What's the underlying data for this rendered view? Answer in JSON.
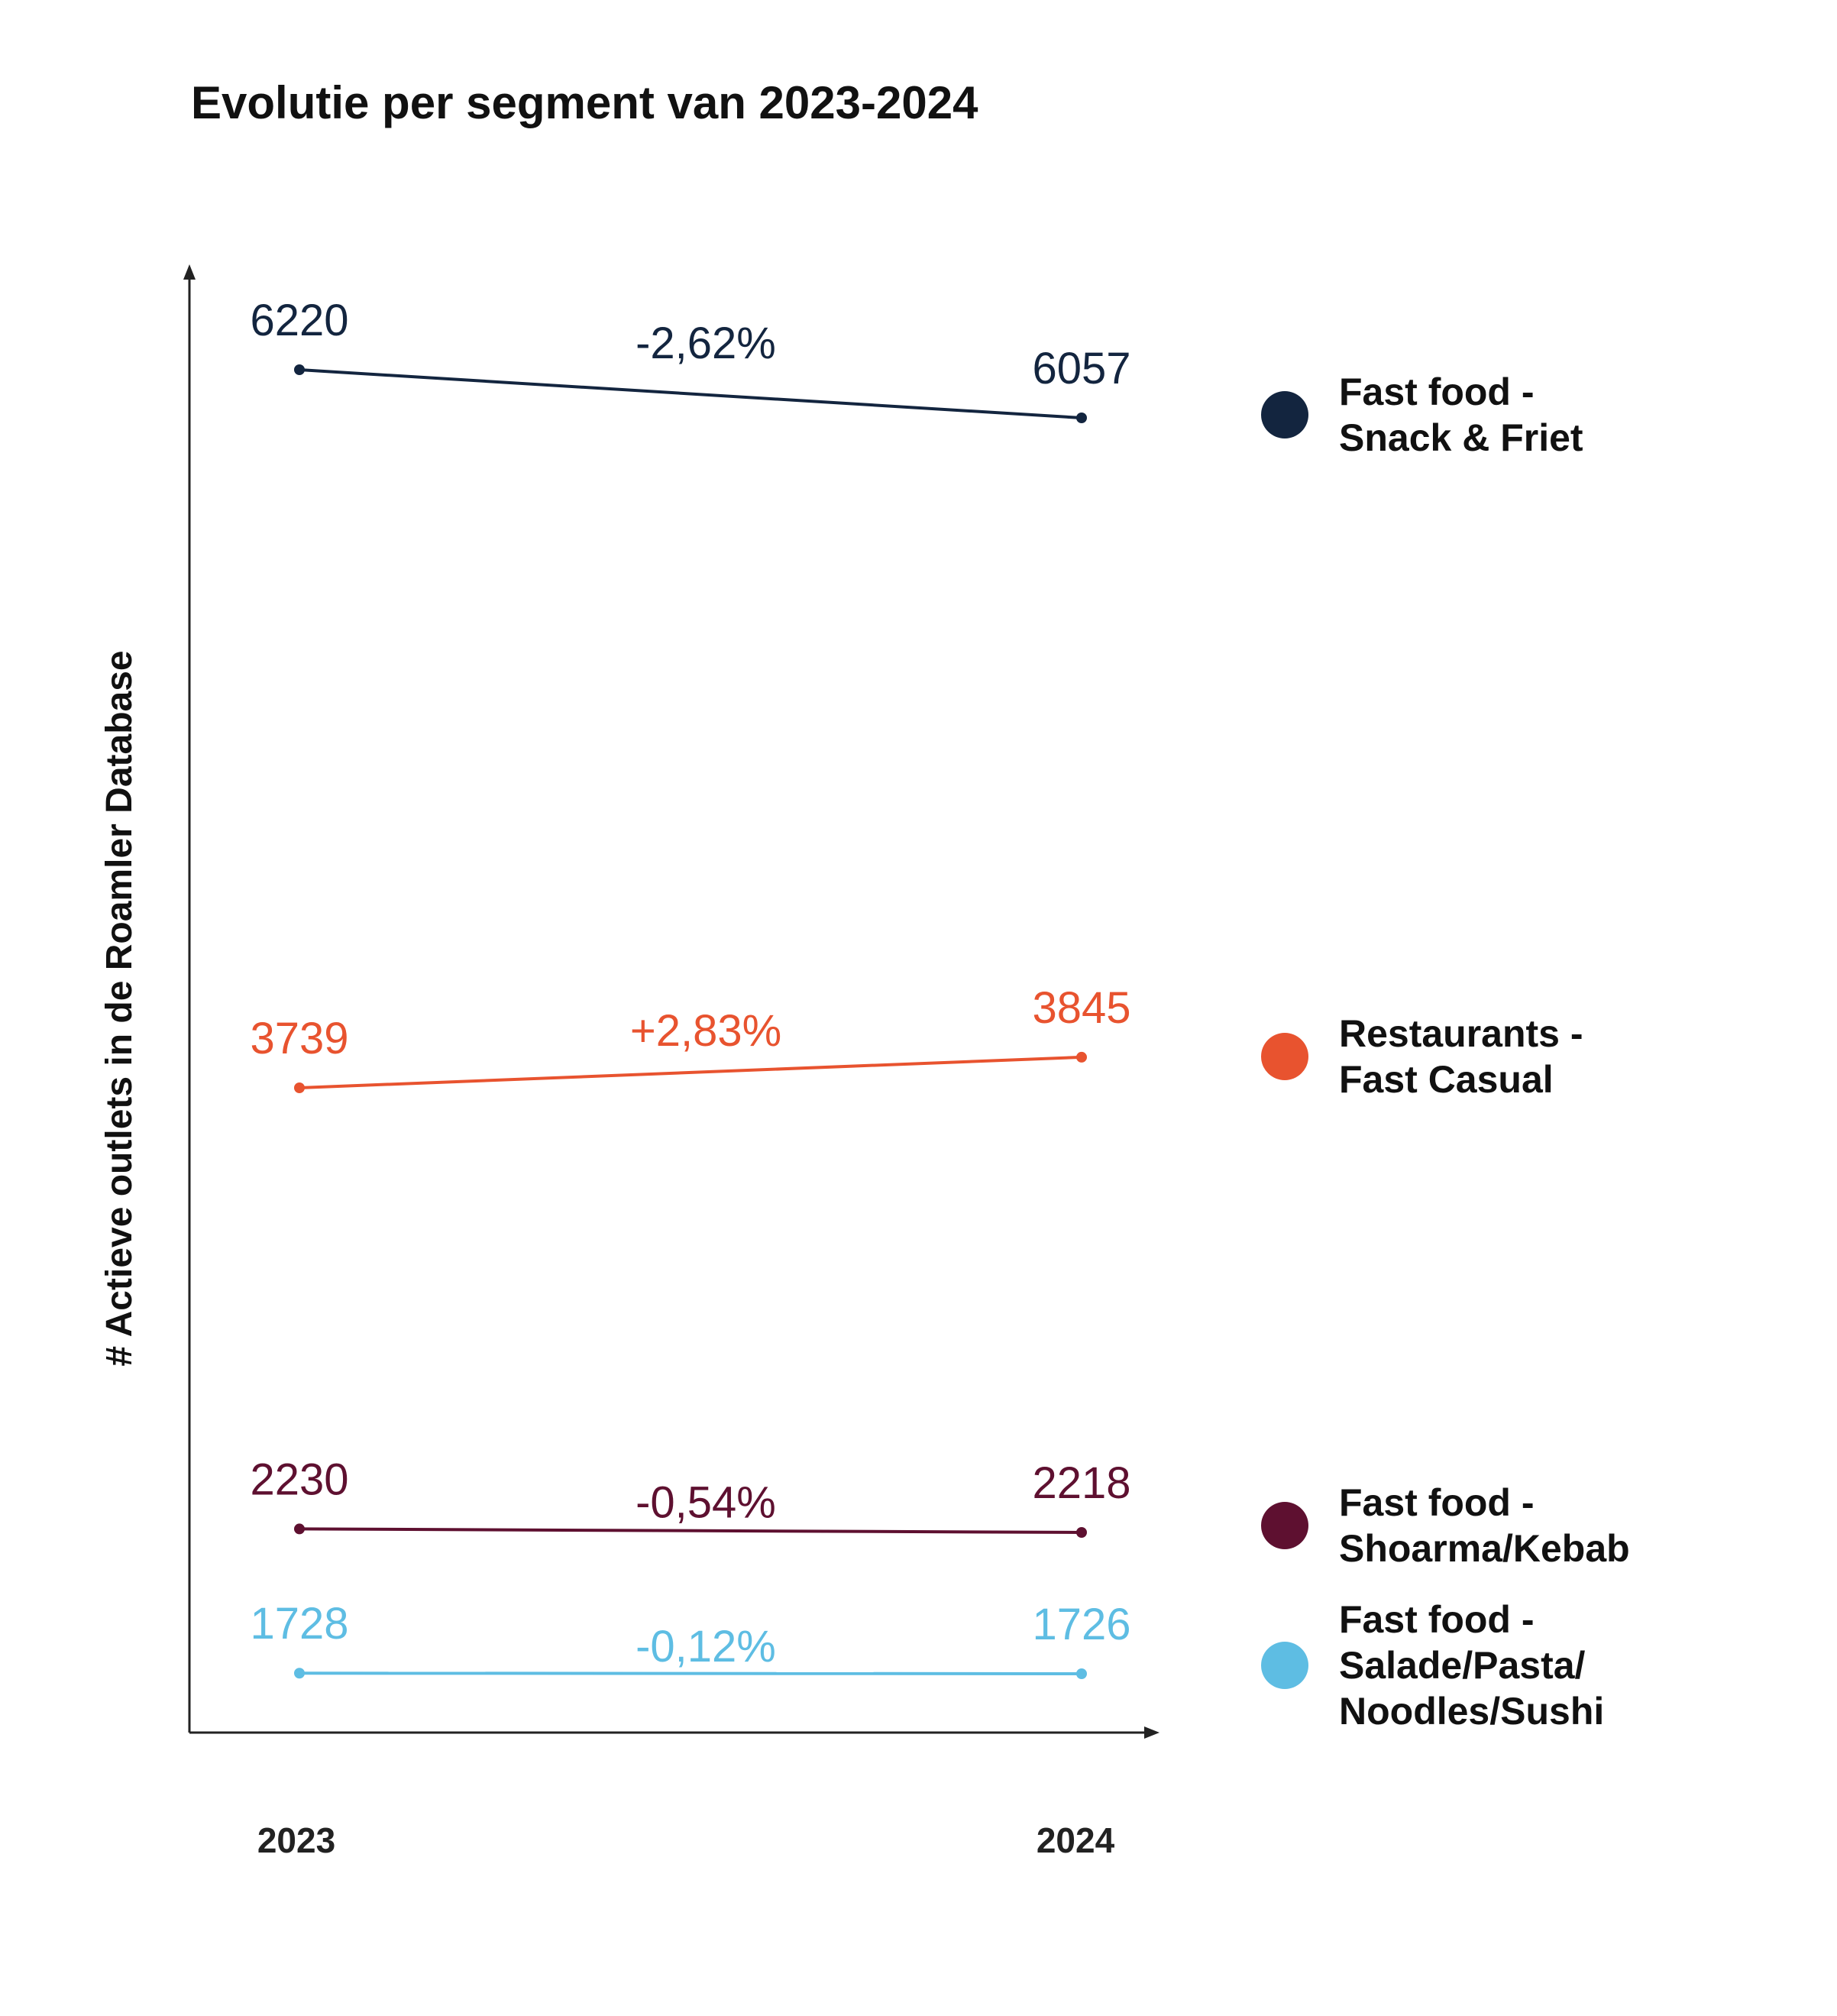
{
  "chart_data": {
    "type": "line",
    "title": "Evolutie per segment van 2023-2024",
    "ylabel": "# Actieve outlets in de Roamler Database",
    "xlabel": "",
    "categories": [
      "2023",
      "2024"
    ],
    "legend_position": "right",
    "grid": false,
    "series": [
      {
        "name": "Fast food - Snack & Friet",
        "legend_lines": [
          "Fast food -",
          "Snack & Friet"
        ],
        "values": [
          6220,
          6057
        ],
        "value_labels": [
          "6220",
          "6057"
        ],
        "change_label": "-2,62%",
        "color": "#13253f"
      },
      {
        "name": "Restaurants - Fast Casual",
        "legend_lines": [
          "Restaurants -",
          "Fast Casual"
        ],
        "values": [
          3739,
          3845
        ],
        "value_labels": [
          "3739",
          "3845"
        ],
        "change_label": "+2,83%",
        "color": "#e8532f"
      },
      {
        "name": "Fast food - Shoarma/Kebab",
        "legend_lines": [
          "Fast food -",
          "Shoarma/Kebab"
        ],
        "values": [
          2230,
          2218
        ],
        "value_labels": [
          "2230",
          "2218"
        ],
        "change_label": "-0,54%",
        "color": "#5e1030"
      },
      {
        "name": "Fast food - Salade/Pasta/ Noodles/Sushi",
        "legend_lines": [
          "Fast food -",
          "Salade/Pasta/",
          "Noodles/Sushi"
        ],
        "values": [
          1728,
          1726
        ],
        "value_labels": [
          "1728",
          "1726"
        ],
        "change_label": "-0,12%",
        "color": "#5ebde3"
      }
    ]
  }
}
